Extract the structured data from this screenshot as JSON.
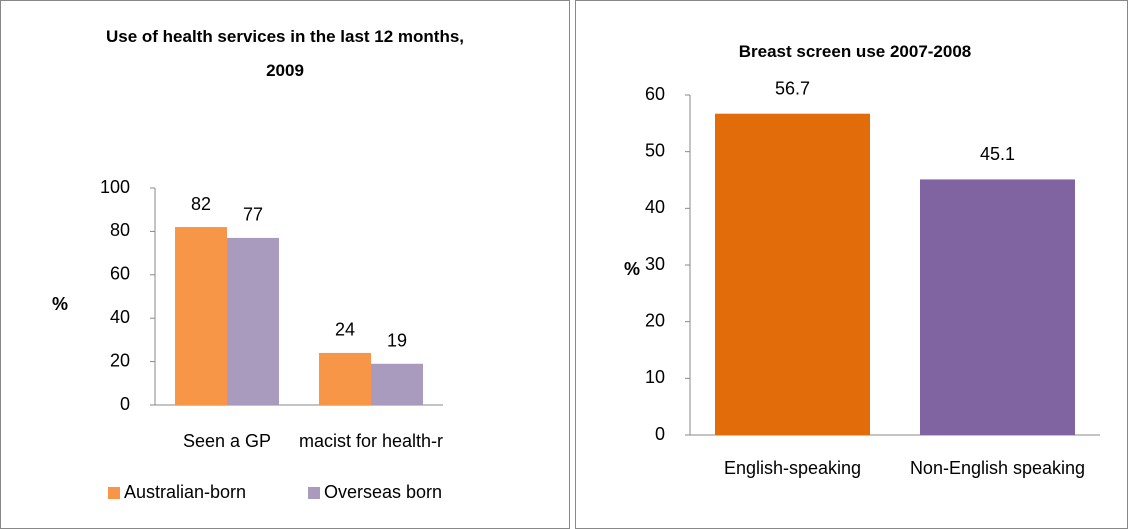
{
  "chart_data": [
    {
      "type": "bar",
      "title": "Use of health services in the last 12 months, 2009",
      "ylabel": "%",
      "categories": [
        "Seen a GP",
        "Asked a pharmacist for health-related advice"
      ],
      "series": [
        {
          "name": "Australian-born",
          "color": "#f79646",
          "values": [
            82,
            24
          ]
        },
        {
          "name": "Overseas born",
          "color": "#a99bbd",
          "values": [
            77,
            19
          ]
        }
      ],
      "ylim": [
        0,
        100
      ],
      "yticks": [
        0,
        20,
        40,
        60,
        80,
        100
      ],
      "legend": "bottom"
    },
    {
      "type": "bar",
      "title": "Breast screen use 2007-2008",
      "ylabel": "%",
      "categories": [
        "English-speaking",
        "Non-English speaking"
      ],
      "values": [
        56.7,
        45.1
      ],
      "colors": [
        "#e36c0a",
        "#8064a2"
      ],
      "ylim": [
        0,
        60
      ],
      "yticks": [
        0,
        10,
        20,
        30,
        40,
        50,
        60
      ]
    }
  ]
}
